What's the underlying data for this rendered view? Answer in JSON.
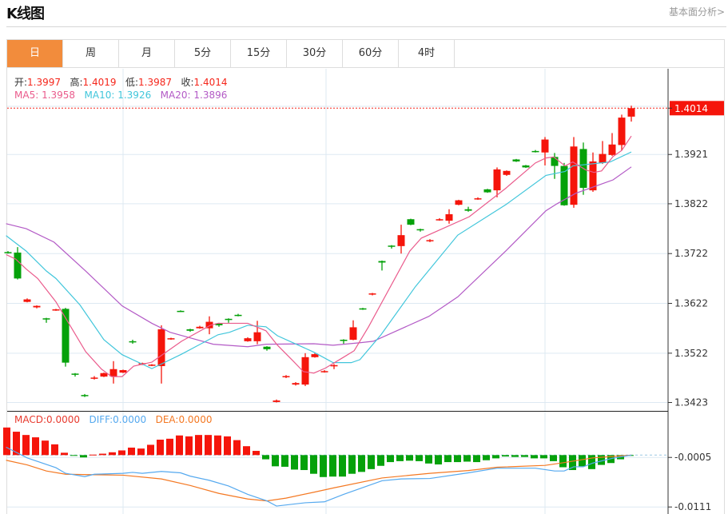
{
  "header": {
    "title": "K线图",
    "more_link": "基本面分析>"
  },
  "tabs": [
    {
      "label": "日",
      "active": true
    },
    {
      "label": "周"
    },
    {
      "label": "月"
    },
    {
      "label": "5分"
    },
    {
      "label": "15分"
    },
    {
      "label": "30分"
    },
    {
      "label": "60分"
    },
    {
      "label": "4时"
    }
  ],
  "ohlc_legend": {
    "open_label": "开:",
    "open": "1.3997",
    "high_label": "高:",
    "high": "1.4019",
    "low_label": "低:",
    "low": "1.3987",
    "close_label": "收:",
    "close": "1.4014"
  },
  "ma_legend": {
    "ma5_label": "MA5: ",
    "ma5": "1.3958",
    "ma10_label": "MA10: ",
    "ma10": "1.3926",
    "ma20_label": "MA20: ",
    "ma20": "1.3896"
  },
  "macd_legend": {
    "macd": "MACD:0.0000",
    "diff": "DIFF:0.0000",
    "dea": "DEA:0.0000"
  },
  "colors": {
    "up": "#f5150b",
    "down": "#05a10a",
    "ma5": "#ea5b8c",
    "ma10": "#41c6db",
    "ma20": "#b35ac6",
    "diff": "#55a9ef",
    "dea": "#f47822",
    "accent": "#f28c3c",
    "grid": "#dde9f2"
  },
  "chart_data": [
    {
      "type": "candlestick",
      "title": "K线图",
      "price_ticks": [
        "1.3423",
        "1.3522",
        "1.3622",
        "1.3722",
        "1.3822",
        "1.3921"
      ],
      "last_price": "1.4014",
      "ylim": [
        1.3405,
        1.4095
      ],
      "candles": [
        [
          1.3725,
          1.3727,
          1.3722,
          1.3724
        ],
        [
          1.3724,
          1.3735,
          1.367,
          1.3672
        ],
        [
          1.3625,
          1.3632,
          1.3624,
          1.363
        ],
        [
          1.3614,
          1.3618,
          1.3612,
          1.3617
        ],
        [
          1.3592,
          1.3593,
          1.3583,
          1.359
        ],
        [
          1.3608,
          1.3611,
          1.3607,
          1.361
        ],
        [
          1.3611,
          1.3613,
          1.3495,
          1.3503
        ],
        [
          1.3481,
          1.3482,
          1.3475,
          1.3479
        ],
        [
          1.3438,
          1.344,
          1.3434,
          1.3436
        ],
        [
          1.3471,
          1.3476,
          1.3469,
          1.3473
        ],
        [
          1.3475,
          1.3483,
          1.3474,
          1.3482
        ],
        [
          1.3475,
          1.3506,
          1.3461,
          1.349
        ],
        [
          1.3483,
          1.3489,
          1.3482,
          1.3488
        ],
        [
          1.3546,
          1.3549,
          1.3541,
          1.3544
        ],
        [
          1.35,
          1.3503,
          1.3498,
          1.3502
        ],
        [
          1.3497,
          1.35,
          1.3496,
          1.3499
        ],
        [
          1.3496,
          1.3578,
          1.3461,
          1.357
        ],
        [
          1.355,
          1.3553,
          1.3549,
          1.3552
        ],
        [
          1.3607,
          1.3608,
          1.3605,
          1.3606
        ],
        [
          1.357,
          1.3571,
          1.3565,
          1.3567
        ],
        [
          1.3572,
          1.3577,
          1.3571,
          1.3575
        ],
        [
          1.3572,
          1.3596,
          1.356,
          1.3585
        ],
        [
          1.3582,
          1.3583,
          1.3575,
          1.3578
        ],
        [
          1.3591,
          1.3592,
          1.3583,
          1.359
        ],
        [
          1.3599,
          1.3601,
          1.3596,
          1.3598
        ],
        [
          1.3546,
          1.3554,
          1.3545,
          1.3552
        ],
        [
          1.3546,
          1.3587,
          1.354,
          1.3564
        ],
        [
          1.3535,
          1.3536,
          1.3527,
          1.353
        ],
        [
          1.3424,
          1.3429,
          1.3423,
          1.3427
        ],
        [
          1.3474,
          1.3478,
          1.3472,
          1.3476
        ],
        [
          1.3459,
          1.3464,
          1.3457,
          1.3462
        ],
        [
          1.3459,
          1.3522,
          1.3456,
          1.3514
        ],
        [
          1.3514,
          1.3522,
          1.3513,
          1.352
        ],
        [
          1.3484,
          1.3488,
          1.3483,
          1.3486
        ],
        [
          1.3496,
          1.35,
          1.349,
          1.3498
        ],
        [
          1.3549,
          1.355,
          1.3541,
          1.3548
        ],
        [
          1.3549,
          1.3588,
          1.3548,
          1.3574
        ],
        [
          1.3612,
          1.3613,
          1.3609,
          1.361
        ],
        [
          1.364,
          1.3643,
          1.3638,
          1.3642
        ],
        [
          1.3707,
          1.3708,
          1.3688,
          1.3704
        ],
        [
          1.3738,
          1.3739,
          1.3732,
          1.3736
        ],
        [
          1.3737,
          1.378,
          1.3722,
          1.3759
        ],
        [
          1.3791,
          1.3792,
          1.3779,
          1.378
        ],
        [
          1.3771,
          1.3772,
          1.3766,
          1.3769
        ],
        [
          1.3747,
          1.3751,
          1.3745,
          1.3749
        ],
        [
          1.3789,
          1.3793,
          1.3788,
          1.3791
        ],
        [
          1.3788,
          1.3811,
          1.3782,
          1.3801
        ],
        [
          1.382,
          1.383,
          1.3819,
          1.3829
        ],
        [
          1.3811,
          1.3816,
          1.3806,
          1.3808
        ],
        [
          1.3831,
          1.3835,
          1.383,
          1.3833
        ],
        [
          1.3851,
          1.3852,
          1.3844,
          1.3845
        ],
        [
          1.3849,
          1.3895,
          1.3835,
          1.3891
        ],
        [
          1.388,
          1.3889,
          1.3878,
          1.3888
        ],
        [
          1.3911,
          1.3912,
          1.3906,
          1.3907
        ],
        [
          1.3899,
          1.39,
          1.3894,
          1.3895
        ],
        [
          1.3928,
          1.393,
          1.3925,
          1.3926
        ],
        [
          1.3925,
          1.3956,
          1.3899,
          1.3951
        ],
        [
          1.3916,
          1.3924,
          1.3872,
          1.3898
        ],
        [
          1.3898,
          1.3904,
          1.3818,
          1.3819
        ],
        [
          1.382,
          1.3956,
          1.3814,
          1.3937
        ],
        [
          1.3932,
          1.3945,
          1.384,
          1.3854
        ],
        [
          1.3849,
          1.3925,
          1.3846,
          1.3907
        ],
        [
          1.3904,
          1.3948,
          1.3902,
          1.3922
        ],
        [
          1.392,
          1.3964,
          1.3918,
          1.3941
        ],
        [
          1.394,
          1.4001,
          1.3929,
          1.3995
        ],
        [
          1.3997,
          1.4019,
          1.3987,
          1.4014
        ]
      ],
      "ma5": [
        [
          -0.2,
          1.372
        ],
        [
          0.8,
          1.3711
        ],
        [
          1.9,
          1.3691
        ],
        [
          3.1,
          1.3672
        ],
        [
          5,
          1.3625
        ],
        [
          8.1,
          1.3525
        ],
        [
          9.75,
          1.349
        ],
        [
          10.8,
          1.3475
        ],
        [
          11.9,
          1.3475
        ],
        [
          13.1,
          1.3496
        ],
        [
          15,
          1.3504
        ],
        [
          18.1,
          1.3546
        ],
        [
          21.1,
          1.3578
        ],
        [
          21.9,
          1.3582
        ],
        [
          25,
          1.3582
        ],
        [
          26.9,
          1.3567
        ],
        [
          28.1,
          1.3538
        ],
        [
          29.75,
          1.3506
        ],
        [
          30.8,
          1.3485
        ],
        [
          31.9,
          1.3482
        ],
        [
          33.1,
          1.3492
        ],
        [
          35,
          1.3514
        ],
        [
          36.1,
          1.3527
        ],
        [
          37.6,
          1.3575
        ],
        [
          41.9,
          1.3727
        ],
        [
          43.1,
          1.3753
        ],
        [
          48.1,
          1.3796
        ],
        [
          51.9,
          1.3853
        ],
        [
          55,
          1.3904
        ],
        [
          56.1,
          1.3914
        ],
        [
          56.9,
          1.3916
        ],
        [
          58.1,
          1.3898
        ],
        [
          58.9,
          1.3906
        ],
        [
          60.25,
          1.389
        ],
        [
          61.1,
          1.3885
        ],
        [
          61.9,
          1.3888
        ],
        [
          63.1,
          1.3917
        ],
        [
          64,
          1.3929
        ],
        [
          65,
          1.3958
        ]
      ],
      "ma10": [
        [
          -0.2,
          1.3758
        ],
        [
          1.9,
          1.3727
        ],
        [
          4,
          1.3687
        ],
        [
          5,
          1.3672
        ],
        [
          7.5,
          1.3619
        ],
        [
          10,
          1.3549
        ],
        [
          11.9,
          1.3519
        ],
        [
          15,
          1.3491
        ],
        [
          18.1,
          1.352
        ],
        [
          21.9,
          1.3559
        ],
        [
          23.1,
          1.3564
        ],
        [
          25,
          1.3578
        ],
        [
          26.9,
          1.3575
        ],
        [
          28.1,
          1.3557
        ],
        [
          31.9,
          1.3524
        ],
        [
          33.9,
          1.3503
        ],
        [
          35.8,
          1.3503
        ],
        [
          36.7,
          1.3509
        ],
        [
          38.9,
          1.3559
        ],
        [
          42.5,
          1.3656
        ],
        [
          46.9,
          1.3759
        ],
        [
          51.9,
          1.382
        ],
        [
          56.1,
          1.3879
        ],
        [
          58.1,
          1.3887
        ],
        [
          58.9,
          1.3898
        ],
        [
          62.8,
          1.3906
        ],
        [
          65,
          1.3926
        ]
      ],
      "ma20": [
        [
          -0.2,
          1.3782
        ],
        [
          1.9,
          1.3772
        ],
        [
          4.8,
          1.3745
        ],
        [
          8.1,
          1.3687
        ],
        [
          11.9,
          1.3617
        ],
        [
          15,
          1.3582
        ],
        [
          16.9,
          1.3564
        ],
        [
          21.4,
          1.354
        ],
        [
          25,
          1.3535
        ],
        [
          26.9,
          1.354
        ],
        [
          31.9,
          1.3541
        ],
        [
          33.9,
          1.3538
        ],
        [
          36.7,
          1.3543
        ],
        [
          38.1,
          1.3546
        ],
        [
          43.9,
          1.3596
        ],
        [
          46.9,
          1.3635
        ],
        [
          51.9,
          1.3727
        ],
        [
          56.1,
          1.3808
        ],
        [
          57.25,
          1.3822
        ],
        [
          59.2,
          1.3843
        ],
        [
          63.1,
          1.387
        ],
        [
          65,
          1.3896
        ]
      ]
    },
    {
      "type": "macd",
      "ticks": [
        "-0.0005",
        "-0.0111"
      ],
      "tick_values": [
        -0.0005,
        -0.0111
      ],
      "histogram": [
        0.0059,
        0.005,
        0.0043,
        0.0038,
        0.0031,
        0.0023,
        0.0005,
        -0.0001,
        -0.0005,
        0.0001,
        0.0003,
        0.0006,
        0.001,
        0.0016,
        0.0014,
        0.0022,
        0.0033,
        0.0035,
        0.0042,
        0.004,
        0.0043,
        0.0043,
        0.0042,
        0.004,
        0.0032,
        0.0019,
        0.0009,
        -0.0009,
        -0.0024,
        -0.0025,
        -0.0031,
        -0.0032,
        -0.004,
        -0.0047,
        -0.0046,
        -0.0046,
        -0.004,
        -0.0036,
        -0.003,
        -0.0023,
        -0.0015,
        -0.0013,
        -0.0012,
        -0.0013,
        -0.0018,
        -0.002,
        -0.0015,
        -0.0015,
        -0.0014,
        -0.0015,
        -0.0011,
        -0.0007,
        -0.0003,
        -0.0004,
        -0.0004,
        -0.0007,
        -0.0007,
        -0.0013,
        -0.0026,
        -0.0032,
        -0.0024,
        -0.003,
        -0.0021,
        -0.0017,
        -0.0009,
        -0.0001
      ],
      "diff": [
        [
          -0.2,
          0.0017
        ],
        [
          2,
          -0.0006
        ],
        [
          5,
          -0.0027
        ],
        [
          6,
          -0.0039
        ],
        [
          8,
          -0.0046
        ],
        [
          9,
          -0.0041
        ],
        [
          12,
          -0.0039
        ],
        [
          13,
          -0.0037
        ],
        [
          14,
          -0.0039
        ],
        [
          16,
          -0.0035
        ],
        [
          18,
          -0.0038
        ],
        [
          19,
          -0.0045
        ],
        [
          21,
          -0.0054
        ],
        [
          23,
          -0.0066
        ],
        [
          25,
          -0.0084
        ],
        [
          27,
          -0.0098
        ],
        [
          28,
          -0.0109
        ],
        [
          31,
          -0.0102
        ],
        [
          33,
          -0.01
        ],
        [
          35,
          -0.0084
        ],
        [
          39,
          -0.0055
        ],
        [
          41,
          -0.0051
        ],
        [
          44,
          -0.005
        ],
        [
          48,
          -0.0038
        ],
        [
          51,
          -0.0028
        ],
        [
          55,
          -0.0028
        ],
        [
          56,
          -0.0031
        ],
        [
          57,
          -0.0034
        ],
        [
          58,
          -0.0034
        ],
        [
          59,
          -0.0025
        ],
        [
          60,
          -0.0025
        ],
        [
          61,
          -0.0017
        ],
        [
          63,
          -0.0007
        ],
        [
          65,
          0.0
        ]
      ],
      "dea": [
        [
          -0.2,
          -0.0011
        ],
        [
          2,
          -0.0021
        ],
        [
          4,
          -0.0034
        ],
        [
          6,
          -0.0041
        ],
        [
          9,
          -0.0042
        ],
        [
          12,
          -0.0043
        ],
        [
          16,
          -0.0051
        ],
        [
          19,
          -0.0065
        ],
        [
          22,
          -0.0082
        ],
        [
          25,
          -0.0094
        ],
        [
          27,
          -0.0098
        ],
        [
          29,
          -0.0092
        ],
        [
          32,
          -0.0079
        ],
        [
          34,
          -0.007
        ],
        [
          39,
          -0.0049
        ],
        [
          44,
          -0.0039
        ],
        [
          48,
          -0.0033
        ],
        [
          51,
          -0.0026
        ],
        [
          56,
          -0.0022
        ],
        [
          58,
          -0.0016
        ],
        [
          61,
          -0.0006
        ],
        [
          65,
          0.0
        ]
      ]
    }
  ]
}
